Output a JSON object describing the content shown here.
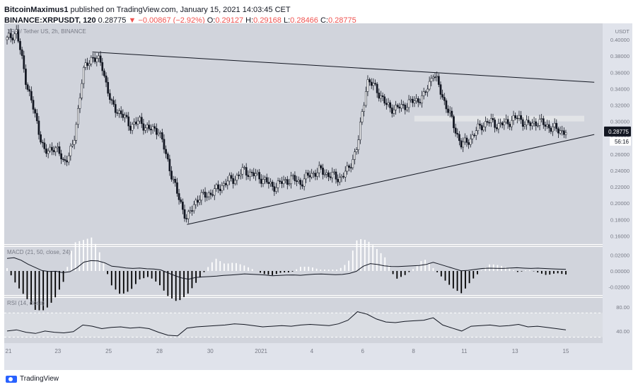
{
  "header": {
    "author": "BitcoinMaximus1",
    "published_text": "published on TradingView.com, January 15, 2021 14:03:45 CET",
    "symbol": "BINANCE:XRPUSDT, 120",
    "last": "0.28775",
    "change": "▼ −0.00867 (−2.92%)",
    "o_label": "O:",
    "o_val": "0.29127",
    "h_label": "H:",
    "h_val": "0.29168",
    "l_label": "L:",
    "l_val": "0.28466",
    "c_label": "C:",
    "c_val": "0.28775"
  },
  "footer": {
    "brand": "TradingView"
  },
  "colors": {
    "pane_bg": "#d1d4dc",
    "candle": "#131722",
    "price_label_bg": "#131722",
    "resistance_zone": "#e6e7ea",
    "hist_positive": "#ffffff",
    "hist_negative": "#000000"
  },
  "chart_data": {
    "type": "candlestick",
    "main": {
      "label": "XRP / Tether US, 2h, BINANCE",
      "y_ticks": [
        "0.40000",
        "0.38000",
        "0.36000",
        "0.34000",
        "0.32000",
        "0.30000",
        "0.28000",
        "0.26000",
        "0.24000",
        "0.22000",
        "0.20000",
        "0.18000",
        "0.16000"
      ],
      "y_unit": "USDT",
      "ylim": [
        0.15,
        0.42
      ],
      "last_price": "0.28775",
      "countdown": "56:16",
      "x_ticks": [
        "21",
        "23",
        "25",
        "28",
        "30",
        "2021",
        "4",
        "6",
        "8",
        "11",
        "13",
        "15"
      ],
      "close_path": [
        [
          0,
          0.4
        ],
        [
          1,
          0.41
        ],
        [
          2,
          0.35
        ],
        [
          4,
          0.26
        ],
        [
          5,
          0.27
        ],
        [
          6,
          0.25
        ],
        [
          7,
          0.27
        ],
        [
          8,
          0.36
        ],
        [
          9,
          0.38
        ],
        [
          10,
          0.37
        ],
        [
          11,
          0.32
        ],
        [
          12,
          0.31
        ],
        [
          13,
          0.295
        ],
        [
          14,
          0.3
        ],
        [
          15,
          0.29
        ],
        [
          16,
          0.29
        ],
        [
          17,
          0.25
        ],
        [
          18,
          0.21
        ],
        [
          19,
          0.18
        ],
        [
          20,
          0.205
        ],
        [
          21,
          0.21
        ],
        [
          22,
          0.215
        ],
        [
          23,
          0.225
        ],
        [
          24,
          0.23
        ],
        [
          25,
          0.24
        ],
        [
          26,
          0.235
        ],
        [
          27,
          0.23
        ],
        [
          28,
          0.22
        ],
        [
          29,
          0.225
        ],
        [
          30,
          0.23
        ],
        [
          31,
          0.225
        ],
        [
          32,
          0.235
        ],
        [
          33,
          0.24
        ],
        [
          34,
          0.235
        ],
        [
          35,
          0.23
        ],
        [
          36,
          0.24
        ],
        [
          37,
          0.27
        ],
        [
          38,
          0.35
        ],
        [
          39,
          0.34
        ],
        [
          40,
          0.32
        ],
        [
          41,
          0.315
        ],
        [
          42,
          0.32
        ],
        [
          43,
          0.325
        ],
        [
          44,
          0.33
        ],
        [
          45,
          0.36
        ],
        [
          46,
          0.33
        ],
        [
          47,
          0.3
        ],
        [
          48,
          0.27
        ],
        [
          49,
          0.28
        ],
        [
          50,
          0.295
        ],
        [
          51,
          0.3
        ],
        [
          52,
          0.295
        ],
        [
          53,
          0.3
        ],
        [
          54,
          0.305
        ],
        [
          55,
          0.295
        ],
        [
          56,
          0.3
        ],
        [
          57,
          0.295
        ],
        [
          58,
          0.29
        ],
        [
          59,
          0.2875
        ]
      ],
      "annotations": {
        "descending_trendline": [
          [
            9,
            0.385
          ],
          [
            62,
            0.348
          ]
        ],
        "ascending_trendline": [
          [
            19,
            0.174
          ],
          [
            62,
            0.284
          ]
        ],
        "resistance_zone": [
          0.3,
          0.307
        ]
      }
    },
    "macd": {
      "label": "MACD (21, 50, close, 24)",
      "y_ticks": [
        "0.02000",
        "0.00000",
        "-0.02000"
      ],
      "ylim": [
        -0.03,
        0.03
      ]
    },
    "rsi": {
      "label": "RSI (14, close)",
      "y_ticks": [
        "80.00",
        "40.00"
      ],
      "ylim": [
        20,
        95
      ],
      "bands": [
        70,
        30
      ],
      "values": [
        40,
        42,
        38,
        36,
        40,
        38,
        37,
        39,
        50,
        48,
        44,
        46,
        47,
        45,
        46,
        44,
        38,
        33,
        32,
        45,
        47,
        48,
        49,
        50,
        52,
        51,
        49,
        47,
        48,
        49,
        48,
        50,
        51,
        50,
        49,
        52,
        58,
        72,
        68,
        60,
        55,
        54,
        56,
        57,
        58,
        62,
        50,
        45,
        40,
        48,
        49,
        50,
        48,
        49,
        51,
        47,
        48,
        46,
        44,
        42
      ]
    }
  }
}
